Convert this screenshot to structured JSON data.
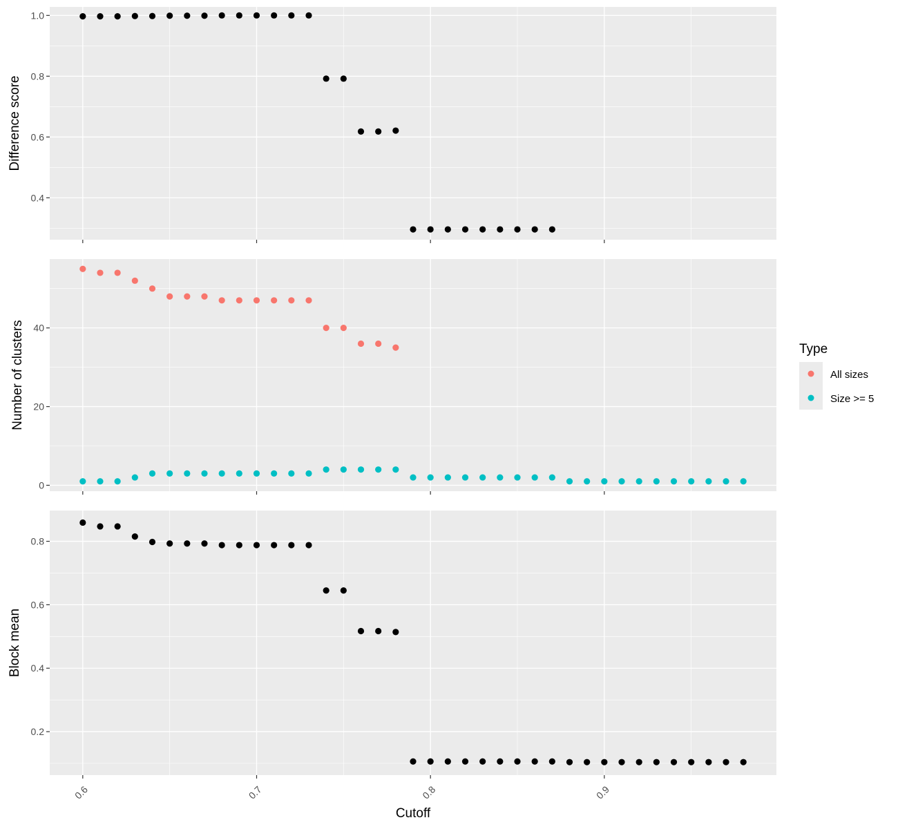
{
  "chart_data": {
    "type": "scatter",
    "xlabel": "Cutoff",
    "x_ticks": [
      0.6,
      0.7,
      0.8,
      0.9
    ],
    "x_tick_labels": [
      "0.6",
      "0.7",
      "0.8",
      "0.9"
    ],
    "xlim": [
      0.581,
      0.999
    ],
    "grid": true,
    "colors": {
      "panel_background": "#ebebeb",
      "grid": "#ffffff",
      "default_point": "#000000",
      "all_sizes": "#f8766d",
      "size_ge_5": "#00bfc4"
    },
    "legend": {
      "title": "Type",
      "position": "right",
      "entries": [
        {
          "label": "All sizes",
          "color": "#f8766d"
        },
        {
          "label": "Size >= 5",
          "color": "#00bfc4"
        }
      ]
    },
    "panels": [
      {
        "ylabel": "Difference score",
        "ylim": [
          0.262,
          1.028
        ],
        "y_ticks": [
          0.4,
          0.6,
          0.8,
          1.0
        ],
        "y_tick_labels": [
          "0.4",
          "0.6",
          "0.8",
          "1.0"
        ],
        "series": [
          {
            "color": "#000000",
            "x": [
              0.6,
              0.61,
              0.62,
              0.63,
              0.64,
              0.65,
              0.66,
              0.67,
              0.68,
              0.69,
              0.7,
              0.71,
              0.72,
              0.73,
              0.74,
              0.75,
              0.76,
              0.77,
              0.78,
              0.79,
              0.8,
              0.81,
              0.82,
              0.83,
              0.84,
              0.85,
              0.86,
              0.87
            ],
            "y": [
              0.997,
              0.997,
              0.997,
              0.998,
              0.998,
              0.999,
              0.999,
              0.999,
              1.0,
              1.0,
              1.0,
              1.0,
              1.0,
              1.0,
              0.792,
              0.792,
              0.618,
              0.618,
              0.621,
              0.296,
              0.296,
              0.296,
              0.296,
              0.296,
              0.296,
              0.296,
              0.296,
              0.296
            ]
          }
        ]
      },
      {
        "ylabel": "Number of clusters",
        "ylim": [
          -1.5,
          57.5
        ],
        "y_ticks": [
          0,
          20,
          40
        ],
        "y_tick_labels": [
          "0",
          "20",
          "40"
        ],
        "series": [
          {
            "name": "All sizes",
            "color": "#f8766d",
            "x": [
              0.6,
              0.61,
              0.62,
              0.63,
              0.64,
              0.65,
              0.66,
              0.67,
              0.68,
              0.69,
              0.7,
              0.71,
              0.72,
              0.73,
              0.74,
              0.75,
              0.76,
              0.77,
              0.78
            ],
            "y": [
              55,
              54,
              54,
              52,
              50,
              48,
              48,
              48,
              47,
              47,
              47,
              47,
              47,
              47,
              40,
              40,
              36,
              36,
              35
            ]
          },
          {
            "name": "Size >= 5",
            "color": "#00bfc4",
            "x": [
              0.6,
              0.61,
              0.62,
              0.63,
              0.64,
              0.65,
              0.66,
              0.67,
              0.68,
              0.69,
              0.7,
              0.71,
              0.72,
              0.73,
              0.74,
              0.75,
              0.76,
              0.77,
              0.78,
              0.79,
              0.8,
              0.81,
              0.82,
              0.83,
              0.84,
              0.85,
              0.86,
              0.87,
              0.88,
              0.89,
              0.9,
              0.91,
              0.92,
              0.93,
              0.94,
              0.95,
              0.96,
              0.97,
              0.98
            ],
            "y": [
              1,
              1,
              1,
              2,
              3,
              3,
              3,
              3,
              3,
              3,
              3,
              3,
              3,
              3,
              4,
              4,
              4,
              4,
              4,
              2,
              2,
              2,
              2,
              2,
              2,
              2,
              2,
              2,
              1,
              1,
              1,
              1,
              1,
              1,
              1,
              1,
              1,
              1,
              1
            ]
          }
        ]
      },
      {
        "ylabel": "Block mean",
        "ylim": [
          0.063,
          0.897
        ],
        "y_ticks": [
          0.2,
          0.4,
          0.6,
          0.8
        ],
        "y_tick_labels": [
          "0.2",
          "0.4",
          "0.6",
          "0.8"
        ],
        "series": [
          {
            "color": "#000000",
            "x": [
              0.6,
              0.61,
              0.62,
              0.63,
              0.64,
              0.65,
              0.66,
              0.67,
              0.68,
              0.69,
              0.7,
              0.71,
              0.72,
              0.73,
              0.74,
              0.75,
              0.76,
              0.77,
              0.78,
              0.79,
              0.8,
              0.81,
              0.82,
              0.83,
              0.84,
              0.85,
              0.86,
              0.87,
              0.88,
              0.89,
              0.9,
              0.91,
              0.92,
              0.93,
              0.94,
              0.95,
              0.96,
              0.97,
              0.98
            ],
            "y": [
              0.859,
              0.847,
              0.847,
              0.815,
              0.798,
              0.793,
              0.793,
              0.793,
              0.788,
              0.788,
              0.788,
              0.788,
              0.788,
              0.788,
              0.645,
              0.645,
              0.517,
              0.517,
              0.514,
              0.106,
              0.106,
              0.106,
              0.106,
              0.106,
              0.106,
              0.106,
              0.106,
              0.106,
              0.104,
              0.104,
              0.104,
              0.104,
              0.104,
              0.104,
              0.104,
              0.104,
              0.104,
              0.104,
              0.104
            ]
          }
        ]
      }
    ]
  }
}
